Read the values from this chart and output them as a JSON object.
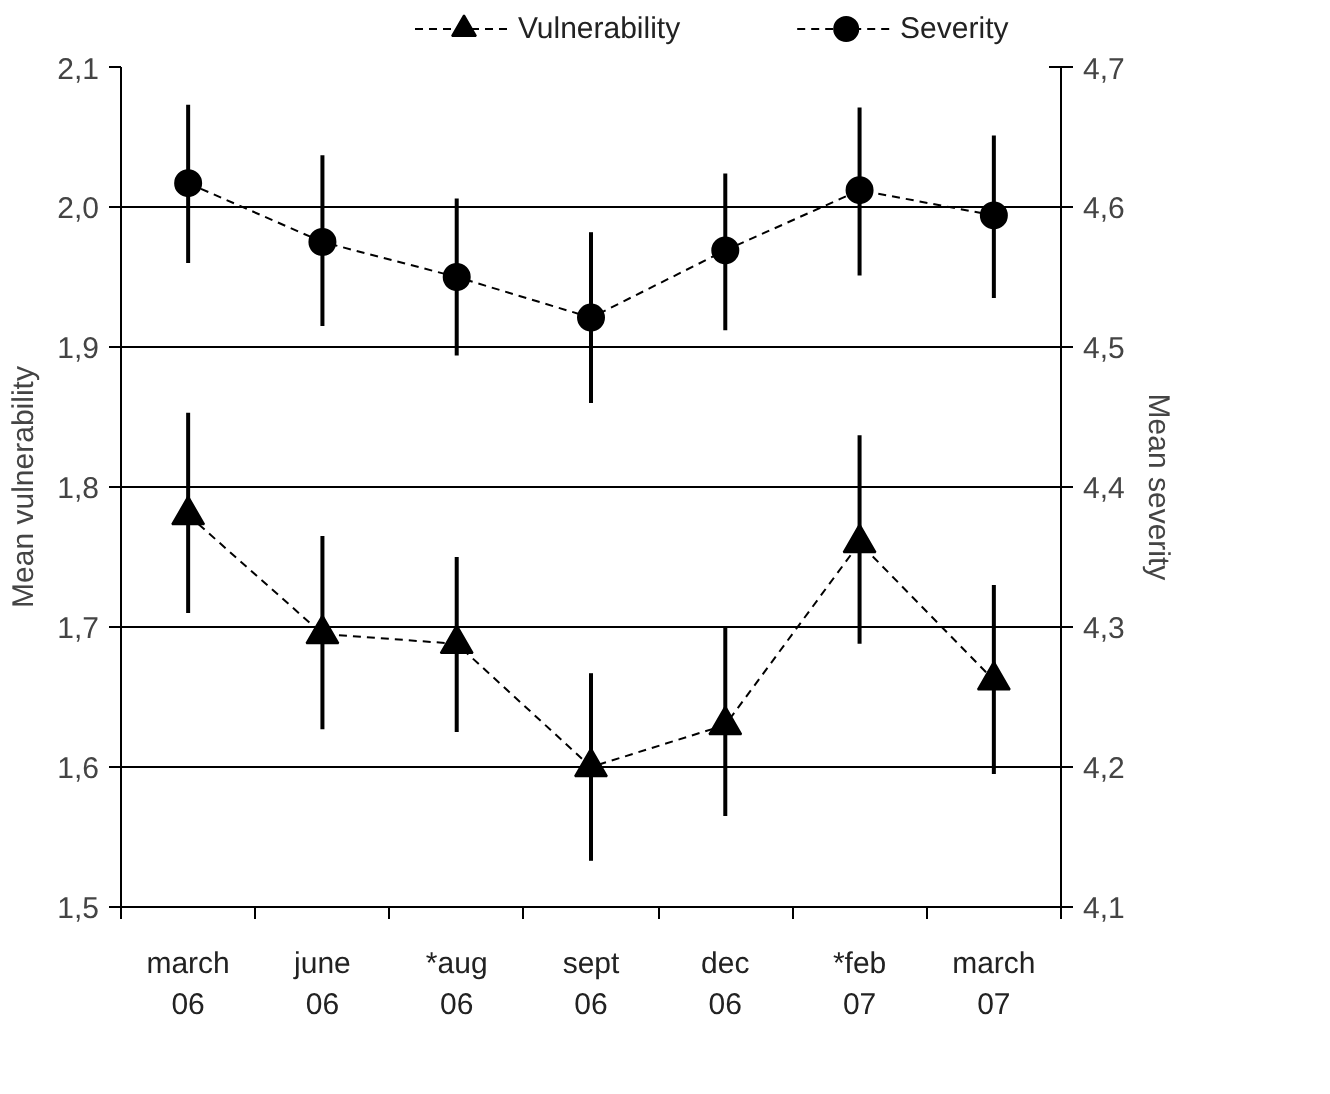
{
  "chart_data": {
    "type": "line",
    "categories": [
      "march\n06",
      "june\n06",
      "*aug\n06",
      "sept\n06",
      "dec\n06",
      "*feb\n07",
      "march\n07"
    ],
    "series": [
      {
        "name": "Vulnerability",
        "color": "#000000",
        "marker": "triangle",
        "values": [
          1.78,
          1.695,
          1.688,
          1.6,
          1.63,
          1.76,
          1.662
        ],
        "errors": [
          [
            1.71,
            1.853
          ],
          [
            1.627,
            1.765
          ],
          [
            1.625,
            1.75
          ],
          [
            1.533,
            1.667
          ],
          [
            1.565,
            1.7
          ],
          [
            1.688,
            1.837
          ],
          [
            1.595,
            1.73
          ]
        ]
      },
      {
        "name": "Severity",
        "color": "#000000",
        "marker": "circle",
        "axis": "y2",
        "values": [
          4.617,
          4.575,
          4.55,
          4.521,
          4.569,
          4.612,
          4.594
        ],
        "errors": [
          [
            4.56,
            4.673
          ],
          [
            4.515,
            4.637
          ],
          [
            4.494,
            4.606
          ],
          [
            4.46,
            4.582
          ],
          [
            4.512,
            4.624
          ],
          [
            4.551,
            4.671
          ],
          [
            4.535,
            4.651
          ]
        ]
      }
    ],
    "ylabel": "Mean vulnerability",
    "y2label": "Mean severity",
    "ylim": [
      1.5,
      2.1
    ],
    "yticks": [
      {
        "value": 1.5,
        "label": "1,5"
      },
      {
        "value": 1.6,
        "label": "1,6"
      },
      {
        "value": 1.7,
        "label": "1,7"
      },
      {
        "value": 1.8,
        "label": "1,8"
      },
      {
        "value": 1.9,
        "label": "1,9"
      },
      {
        "value": 2.0,
        "label": "2,0"
      },
      {
        "value": 2.1,
        "label": "2,1"
      }
    ],
    "y2lim": [
      4.1,
      4.7
    ],
    "y2ticks": [
      {
        "value": 4.1,
        "label": "4,1"
      },
      {
        "value": 4.2,
        "label": "4,2"
      },
      {
        "value": 4.3,
        "label": "4,3"
      },
      {
        "value": 4.4,
        "label": "4,4"
      },
      {
        "value": 4.5,
        "label": "4,5"
      },
      {
        "value": 4.6,
        "label": "4,6"
      },
      {
        "value": 4.7,
        "label": "4,7"
      }
    ],
    "grid": "y",
    "legend": "top",
    "line_style": "dashed"
  }
}
